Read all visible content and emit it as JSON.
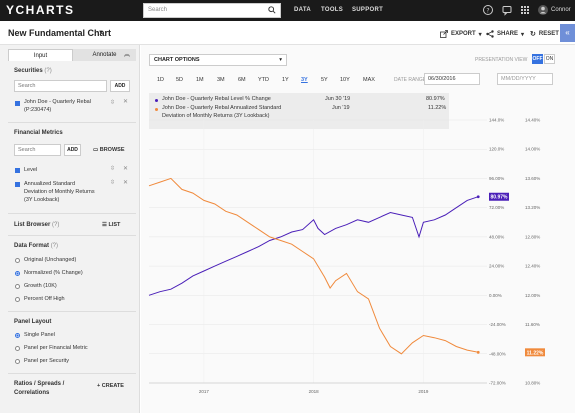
{
  "topbar": {
    "logo": "YCHARTS",
    "search_placeholder": "Search",
    "nav": [
      "DATA",
      "TOOLS",
      "SUPPORT"
    ],
    "user": "Connor"
  },
  "header": {
    "title": "New Fundamental Chart",
    "export_label": "EXPORT",
    "share_label": "SHARE",
    "reset_label": "RESET"
  },
  "sidebar": {
    "tabs": [
      "Input",
      "Annotate"
    ],
    "securities_title": "Securities",
    "securities_search_placeholder": "Search",
    "add_label": "ADD",
    "security_item": [
      "John Doe - Quarterly Rebal",
      "(P:230474)"
    ],
    "metrics_title": "Financial Metrics",
    "metrics_search_placeholder": "Search",
    "browse_label": "BROWSE",
    "metric_level": "Level",
    "metric_annualized": [
      "Annualized Standard",
      "Deviation of Monthly Returns",
      "(3Y Lookback)"
    ],
    "list_browser_title": "List Browser",
    "list_label": "LIST",
    "data_format_title": "Data Format",
    "data_format_options": [
      "Original (Unchanged)",
      "Normalized (% Change)",
      "Growth (10K)",
      "Percent Off High"
    ],
    "data_format_selected": 1,
    "panel_layout_title": "Panel Layout",
    "panel_layout_options": [
      "Single Panel",
      "Panel per Financial Metric",
      "Panel per Security"
    ],
    "panel_layout_selected": 0,
    "ratios_title": [
      "Ratios / Spreads /",
      "Correlations"
    ],
    "create_label": "CREATE"
  },
  "chart_area": {
    "options_label": "CHART OPTIONS",
    "presentation_label": "PRESENTATION VIEW",
    "toggle_off": "OFF",
    "toggle_on": "ON",
    "ranges": [
      "1D",
      "5D",
      "1M",
      "3M",
      "6M",
      "YTD",
      "1Y",
      "3Y",
      "5Y",
      "10Y",
      "MAX"
    ],
    "active_range": "3Y",
    "date_range_label": "DATE RANGE",
    "start_date": "06/30/2016",
    "end_date_placeholder": "MM/DD/YYYY",
    "legend": [
      {
        "label": "John Doe - Quarterly Rebal Level % Change",
        "date": "Jun 30 '19",
        "value": "80.97%"
      },
      {
        "label": [
          "John Doe - Quarterly Rebal Annualized Standard",
          "Deviation of Monthly Returns (3Y Lookback)"
        ],
        "date": "Jun '19",
        "value": "11.22%"
      }
    ]
  },
  "colors": {
    "purple": "#4a1fb8",
    "orange": "#f08a3c",
    "accent": "#3572e0"
  },
  "chart_data": {
    "type": "line",
    "x_ticks": [
      "2017",
      "2018",
      "2019"
    ],
    "y_left_ticks": [
      "144.0%",
      "120.0%",
      "96.00%",
      "72.00%",
      "48.00%",
      "24.00%",
      "0.00%",
      "-24.00%",
      "-48.00%",
      "-72.00%"
    ],
    "y_right_ticks": [
      "14.40%",
      "14.00%",
      "13.60%",
      "13.20%",
      "12.80%",
      "12.40%",
      "12.00%",
      "11.60%",
      "11.20%",
      "10.80%"
    ],
    "ylim_left": [
      -72,
      144
    ],
    "ylim_right": [
      10.8,
      14.4
    ],
    "series": [
      {
        "name": "John Doe - Quarterly Rebal Level % Change",
        "axis": "left",
        "last_label": "80.97%",
        "x": [
          2016.5,
          2016.6,
          2016.7,
          2016.8,
          2016.9,
          2017.0,
          2017.1,
          2017.2,
          2017.3,
          2017.4,
          2017.5,
          2017.6,
          2017.7,
          2017.8,
          2017.9,
          2018.0,
          2018.04,
          2018.1,
          2018.2,
          2018.3,
          2018.4,
          2018.5,
          2018.6,
          2018.7,
          2018.8,
          2018.9,
          2018.96,
          2019.0,
          2019.1,
          2019.2,
          2019.3,
          2019.4,
          2019.5
        ],
        "y": [
          0.0,
          3.0,
          5.0,
          10.0,
          16.0,
          20.0,
          24.0,
          28.0,
          32.0,
          36.0,
          40.0,
          45.0,
          48.0,
          52.0,
          54.0,
          62.0,
          55.0,
          50.0,
          55.0,
          58.0,
          62.0,
          60.0,
          64.0,
          68.0,
          66.0,
          64.0,
          48.0,
          60.0,
          62.0,
          66.0,
          72.0,
          78.0,
          80.97
        ]
      },
      {
        "name": "John Doe - Quarterly Rebal Annualized Standard Deviation of Monthly Returns (3Y Lookback)",
        "axis": "right",
        "last_label": "11.22%",
        "x": [
          2016.5,
          2016.6,
          2016.7,
          2016.8,
          2016.9,
          2017.0,
          2017.1,
          2017.2,
          2017.3,
          2017.4,
          2017.5,
          2017.6,
          2017.7,
          2017.8,
          2017.9,
          2018.0,
          2018.1,
          2018.15,
          2018.2,
          2018.3,
          2018.4,
          2018.5,
          2018.6,
          2018.7,
          2018.8,
          2018.9,
          2019.0,
          2019.1,
          2019.2,
          2019.3,
          2019.4,
          2019.5
        ],
        "y": [
          13.5,
          13.55,
          13.6,
          13.45,
          13.4,
          13.3,
          13.25,
          13.15,
          13.1,
          13.0,
          12.9,
          12.8,
          12.75,
          12.7,
          12.6,
          12.5,
          12.25,
          12.1,
          12.2,
          12.3,
          12.05,
          11.95,
          11.55,
          11.3,
          11.2,
          11.35,
          11.45,
          11.42,
          11.38,
          11.3,
          11.25,
          11.22
        ]
      }
    ]
  }
}
